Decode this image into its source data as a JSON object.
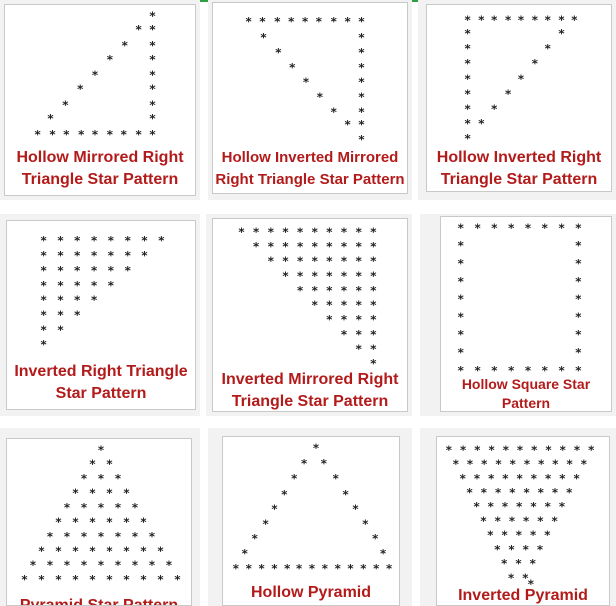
{
  "accent_color": "#b31b1b",
  "top_line_color": "#2ea043",
  "cards": [
    {
      "id": "hollow-mirrored-right-triangle",
      "icon": "hollow-mirrored-right-triangle-star-pattern-icon",
      "caption_lines": [
        "Hollow Mirrored Right",
        "Triangle Star Pattern"
      ]
    },
    {
      "id": "hollow-inverted-mirrored-right-triangle",
      "icon": "hollow-inverted-mirrored-right-triangle-star-pattern-icon",
      "caption_lines": [
        "Hollow Inverted Mirrored",
        "Right Triangle Star Pattern"
      ]
    },
    {
      "id": "hollow-inverted-right-triangle",
      "icon": "hollow-inverted-right-triangle-star-pattern-icon",
      "caption_lines": [
        "Hollow Inverted Right",
        "Triangle Star Pattern"
      ]
    },
    {
      "id": "inverted-right-triangle",
      "icon": "inverted-right-triangle-star-pattern-icon",
      "caption_lines": [
        "Inverted Right Triangle",
        "Star Pattern"
      ]
    },
    {
      "id": "inverted-mirrored-right-triangle",
      "icon": "inverted-mirrored-right-triangle-star-pattern-icon",
      "caption_lines": [
        "Inverted Mirrored Right",
        "Triangle Star Pattern"
      ]
    },
    {
      "id": "hollow-square",
      "icon": "hollow-square-star-pattern-icon",
      "caption_lines": [
        "Hollow Square Star",
        "Pattern"
      ]
    },
    {
      "id": "pyramid",
      "icon": "pyramid-star-pattern-icon",
      "caption_lines": [
        "Pyramid Star Pattern"
      ]
    },
    {
      "id": "hollow-pyramid",
      "icon": "hollow-pyramid-star-pattern-icon",
      "caption_lines": [
        "Hollow Pyramid"
      ]
    },
    {
      "id": "inverted-pyramid",
      "icon": "inverted-pyramid-star-pattern-icon",
      "caption_lines": [
        "Inverted Pyramid"
      ]
    }
  ]
}
